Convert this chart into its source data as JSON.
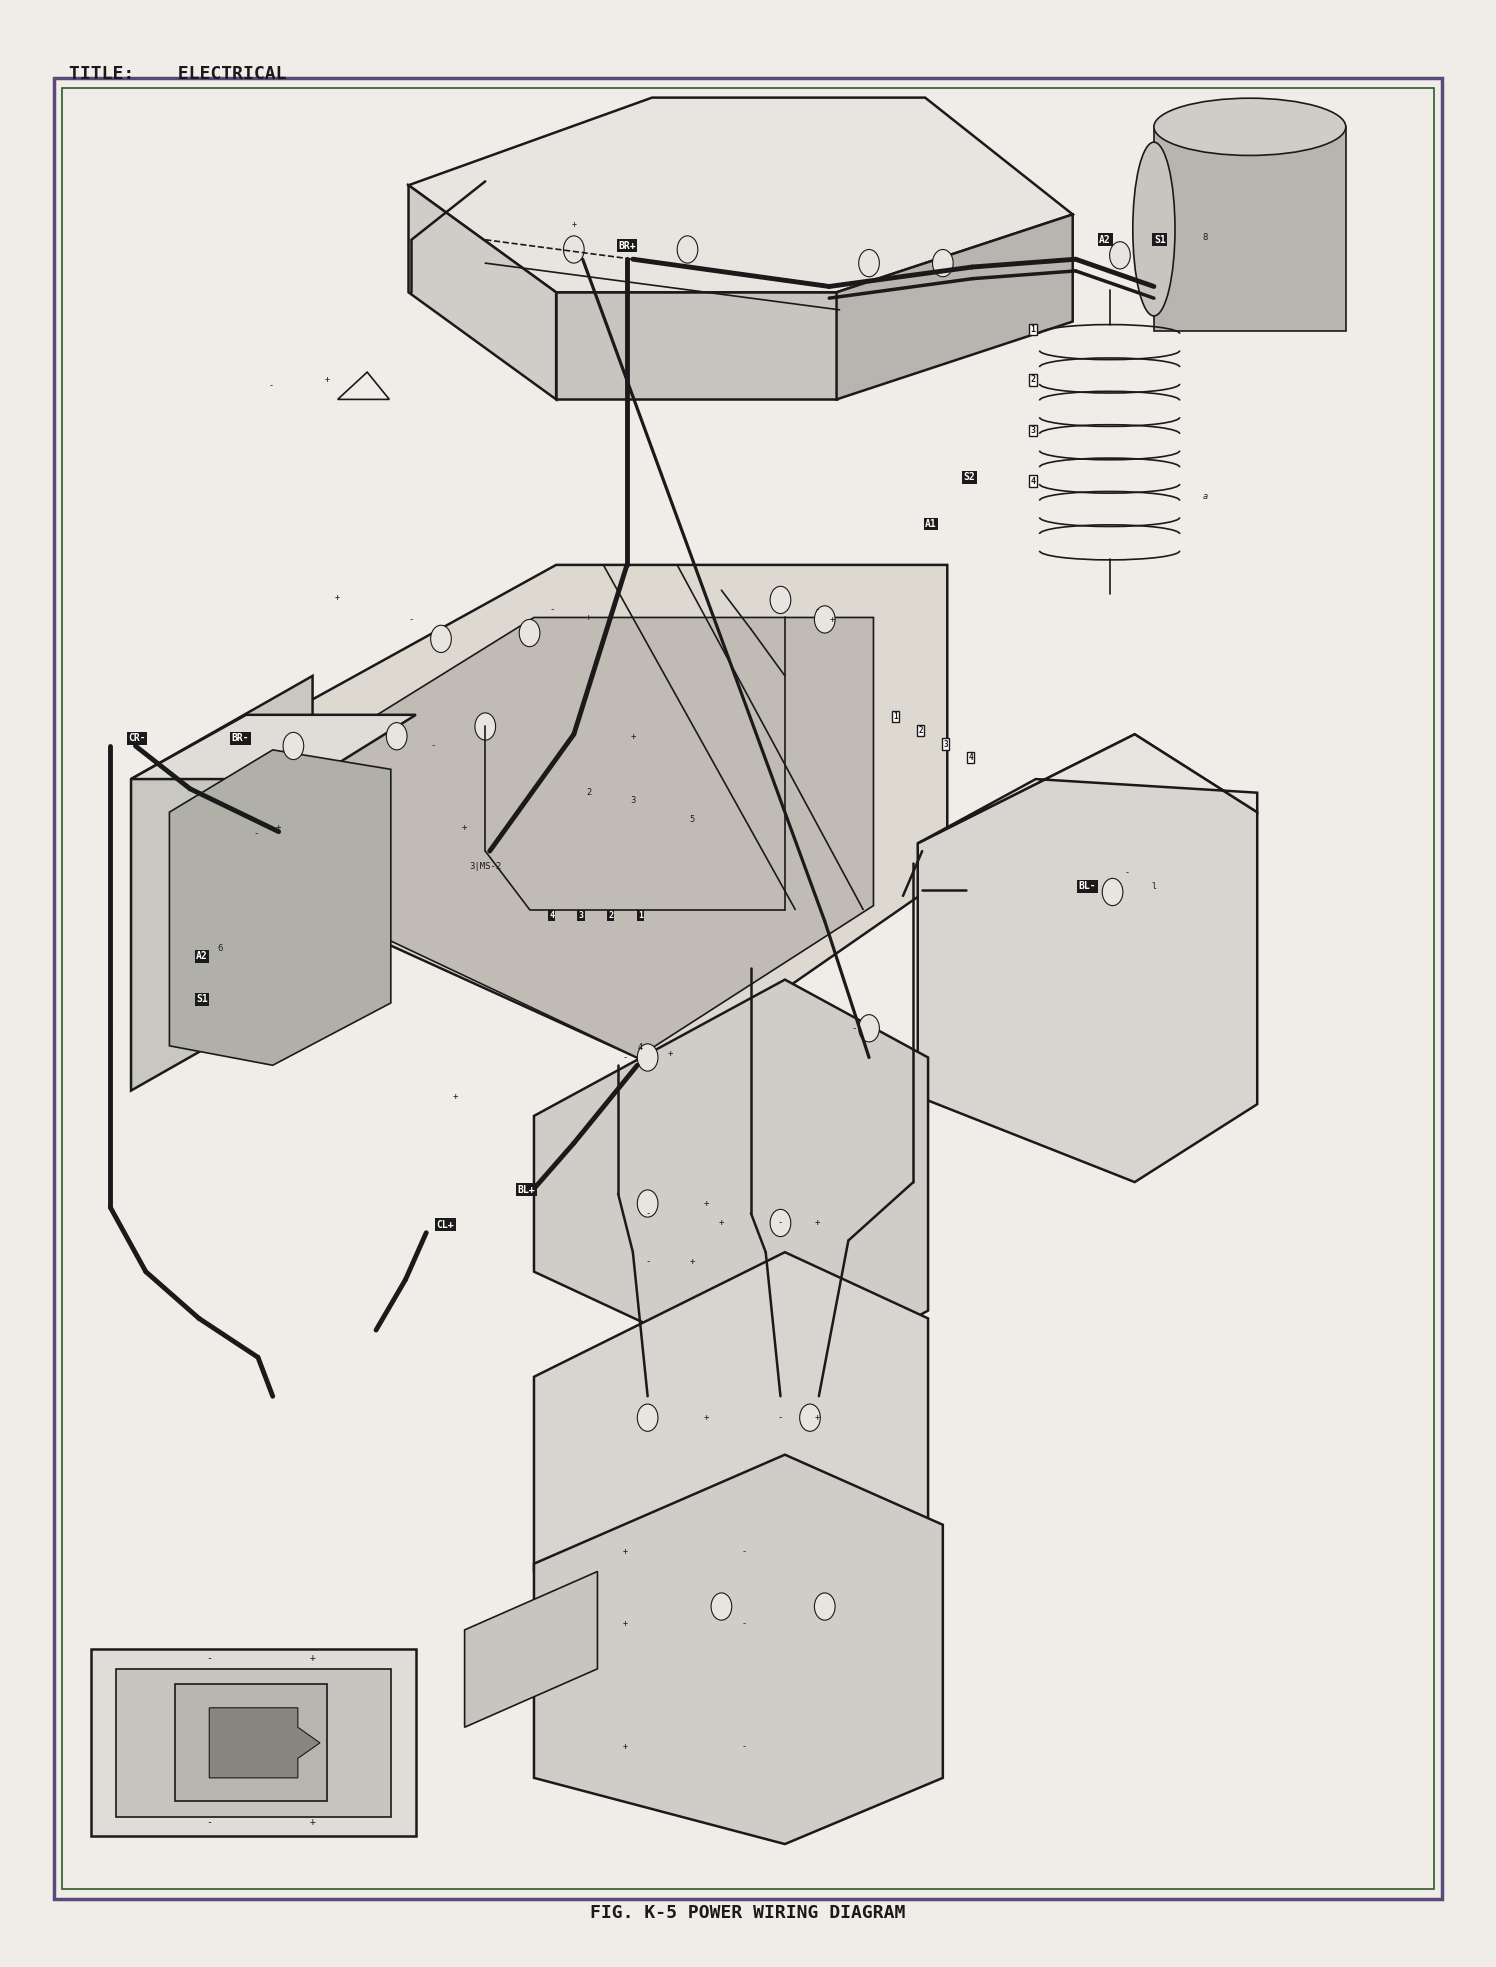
{
  "title_text": "TITLE:    ELECTRICAL",
  "caption_text": "FIG. K-5 POWER WIRING DIAGRAM",
  "bg_color": "#f0ede8",
  "border_color_outer": "#5a4a7a",
  "border_color_inner": "#2d5a27",
  "title_fontsize": 13,
  "caption_fontsize": 13,
  "fig_width": 14.76,
  "fig_height": 19.47,
  "line_color": "#1a1a1a"
}
